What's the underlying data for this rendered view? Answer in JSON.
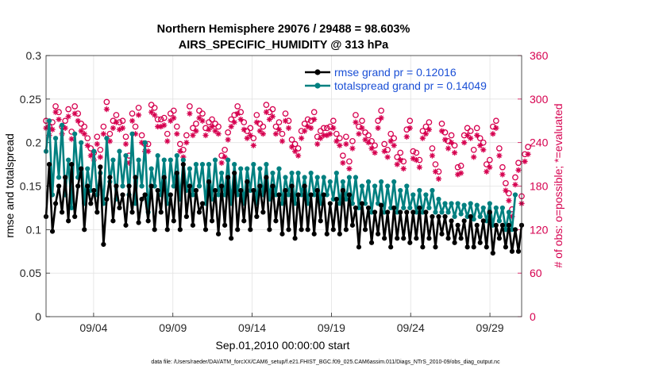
{
  "chart_data": {
    "type": "line",
    "title": "Northern Hemisphere 29076 / 29488 = 98.603%",
    "subtitle": "AIRS_SPECIFIC_HUMIDITY @ 313 hPa",
    "xlabel": "Sep.01,2010 00:00:00 start",
    "ylabel": "rmse and totalspread",
    "y2label": "# of obs: o=possible; *=evaluated",
    "footnote": "data file: /Users/raeder/DAI/ATM_forcXX/CAM6_setup/f.e21.FHIST_BGC.f09_025.CAM6assim.011/Diags_NTrS_2010-09/obs_diag_output.nc",
    "xlim": [
      1,
      31
    ],
    "ylim": [
      0,
      0.3
    ],
    "y2lim": [
      0,
      360
    ],
    "xtick_days": [
      4,
      9,
      14,
      19,
      24,
      29
    ],
    "xtick_labels": [
      "09/04",
      "09/09",
      "09/14",
      "09/19",
      "09/24",
      "09/29"
    ],
    "yticks": [
      "0",
      "0.05",
      "0.1",
      "0.15",
      "0.2",
      "0.25",
      "0.3"
    ],
    "y2ticks": [
      "0",
      "60",
      "120",
      "180",
      "240",
      "300",
      "360"
    ],
    "colors": {
      "rmse": "#000000",
      "spread": "#008080",
      "obs": "#d6004f",
      "legend_text": "#1a4fd6"
    },
    "series": [
      {
        "name": "rmse grand pr = 0.12016",
        "values": [
          0.115,
          0.175,
          0.098,
          0.13,
          0.15,
          0.12,
          0.16,
          0.11,
          0.175,
          0.115,
          0.15,
          0.17,
          0.1,
          0.15,
          0.13,
          0.145,
          0.12,
          0.172,
          0.083,
          0.135,
          0.16,
          0.11,
          0.15,
          0.125,
          0.14,
          0.105,
          0.15,
          0.12,
          0.16,
          0.108,
          0.135,
          0.14,
          0.11,
          0.15,
          0.1,
          0.145,
          0.12,
          0.16,
          0.1,
          0.14,
          0.11,
          0.165,
          0.1,
          0.175,
          0.115,
          0.15,
          0.105,
          0.145,
          0.12,
          0.13,
          0.1,
          0.155,
          0.11,
          0.145,
          0.095,
          0.15,
          0.105,
          0.16,
          0.09,
          0.165,
          0.1,
          0.145,
          0.11,
          0.155,
          0.1,
          0.145,
          0.115,
          0.15,
          0.12,
          0.16,
          0.1,
          0.15,
          0.11,
          0.14,
          0.095,
          0.145,
          0.1,
          0.15,
          0.09,
          0.14,
          0.1,
          0.15,
          0.1,
          0.14,
          0.095,
          0.145,
          0.11,
          0.14,
          0.095,
          0.13,
          0.1,
          0.135,
          0.095,
          0.145,
          0.1,
          0.14,
          0.105,
          0.125,
          0.08,
          0.13,
          0.1,
          0.125,
          0.085,
          0.12,
          0.095,
          0.128,
          0.09,
          0.12,
          0.08,
          0.125,
          0.09,
          0.12,
          0.09,
          0.12,
          0.085,
          0.12,
          0.09,
          0.125,
          0.08,
          0.12,
          0.09,
          0.115,
          0.08,
          0.115,
          0.095,
          0.115,
          0.09,
          0.11,
          0.085,
          0.105,
          0.09,
          0.11,
          0.08,
          0.115,
          0.08,
          0.105,
          0.085,
          0.11,
          0.08,
          0.12,
          0.073,
          0.105,
          0.09,
          0.105,
          0.08,
          0.105,
          0.075,
          0.1,
          0.075,
          0.105
        ]
      },
      {
        "name": "totalspread grand pr = 0.14049",
        "values": [
          0.19,
          0.225,
          0.14,
          0.205,
          0.16,
          0.22,
          0.14,
          0.18,
          0.125,
          0.21,
          0.16,
          0.2,
          0.13,
          0.17,
          0.145,
          0.19,
          0.14,
          0.165,
          0.13,
          0.205,
          0.155,
          0.18,
          0.135,
          0.19,
          0.15,
          0.185,
          0.14,
          0.21,
          0.13,
          0.18,
          0.15,
          0.2,
          0.12,
          0.17,
          0.15,
          0.185,
          0.14,
          0.18,
          0.13,
          0.18,
          0.15,
          0.185,
          0.135,
          0.18,
          0.145,
          0.17,
          0.14,
          0.175,
          0.15,
          0.175,
          0.13,
          0.175,
          0.135,
          0.18,
          0.14,
          0.165,
          0.14,
          0.18,
          0.13,
          0.175,
          0.14,
          0.17,
          0.13,
          0.17,
          0.145,
          0.175,
          0.13,
          0.17,
          0.14,
          0.175,
          0.135,
          0.165,
          0.14,
          0.17,
          0.13,
          0.16,
          0.14,
          0.165,
          0.13,
          0.165,
          0.14,
          0.16,
          0.13,
          0.165,
          0.14,
          0.16,
          0.13,
          0.16,
          0.14,
          0.155,
          0.135,
          0.165,
          0.13,
          0.155,
          0.135,
          0.16,
          0.13,
          0.16,
          0.125,
          0.15,
          0.13,
          0.155,
          0.12,
          0.15,
          0.13,
          0.155,
          0.12,
          0.15,
          0.125,
          0.155,
          0.12,
          0.145,
          0.125,
          0.15,
          0.125,
          0.14,
          0.12,
          0.145,
          0.12,
          0.14,
          0.125,
          0.145,
          0.12,
          0.135,
          0.12,
          0.13,
          0.12,
          0.13,
          0.115,
          0.13,
          0.118,
          0.128,
          0.115,
          0.13,
          0.112,
          0.128,
          0.115,
          0.125,
          0.11,
          0.13,
          0.105,
          0.125,
          0.11,
          0.125,
          0.1,
          0.12,
          0.1,
          0.14
        ]
      }
    ],
    "obs_possible": [
      270,
      262,
      268,
      290,
      282,
      262,
      270,
      286,
      255,
      290,
      280,
      266,
      262,
      246,
      232,
      226,
      248,
      230,
      262,
      296,
      252,
      270,
      278,
      268,
      270,
      248,
      222,
      280,
      262,
      288,
      250,
      238,
      238,
      292,
      288,
      272,
      272,
      274,
      252,
      280,
      284,
      262,
      238,
      230,
      250,
      290,
      260,
      266,
      284,
      280,
      260,
      268,
      272,
      266,
      262,
      222,
      230,
      254,
      272,
      278,
      290,
      282,
      268,
      256,
      260,
      246,
      278,
      266,
      262,
      292,
      282,
      286,
      262,
      268,
      252,
      280,
      270,
      244,
      238,
      232,
      256,
      266,
      272,
      270,
      282,
      248,
      256,
      260,
      260,
      262,
      270,
      252,
      246,
      222,
      248,
      214,
      242,
      278,
      262,
      270,
      254,
      250,
      242,
      236,
      270,
      284,
      238,
      230,
      252,
      246,
      220,
      226,
      214,
      258,
      270,
      228,
      226,
      216,
      256,
      262,
      268,
      232,
      210,
      200,
      266,
      254,
      242,
      250,
      236,
      206,
      208,
      250,
      260,
      256,
      230,
      260,
      246,
      240,
      210,
      216,
      262,
      270,
      232,
      206,
      184,
      170,
      148,
      192,
      212,
      166,
      224,
      234
    ],
    "obs_evaluated": [
      260,
      250,
      258,
      282,
      272,
      252,
      260,
      276,
      245,
      280,
      270,
      256,
      252,
      236,
      222,
      216,
      238,
      220,
      252,
      286,
      242,
      260,
      268,
      258,
      260,
      238,
      212,
      270,
      252,
      278,
      240,
      228,
      228,
      282,
      278,
      262,
      262,
      264,
      242,
      270,
      274,
      252,
      228,
      220,
      240,
      280,
      250,
      256,
      274,
      270,
      250,
      258,
      262,
      256,
      252,
      212,
      220,
      244,
      262,
      268,
      280,
      272,
      258,
      246,
      250,
      236,
      268,
      256,
      252,
      282,
      272,
      276,
      252,
      258,
      242,
      270,
      260,
      234,
      228,
      222,
      246,
      256,
      262,
      260,
      272,
      238,
      246,
      250,
      250,
      252,
      260,
      242,
      236,
      212,
      238,
      204,
      232,
      268,
      252,
      260,
      244,
      240,
      232,
      226,
      260,
      274,
      228,
      220,
      242,
      236,
      210,
      216,
      204,
      248,
      260,
      218,
      216,
      206,
      246,
      252,
      258,
      222,
      200,
      190,
      256,
      244,
      232,
      240,
      226,
      196,
      198,
      240,
      250,
      246,
      220,
      250,
      236,
      230,
      200,
      206,
      252,
      260,
      222,
      196,
      174,
      160,
      138,
      182,
      202,
      156,
      214,
      224
    ]
  }
}
